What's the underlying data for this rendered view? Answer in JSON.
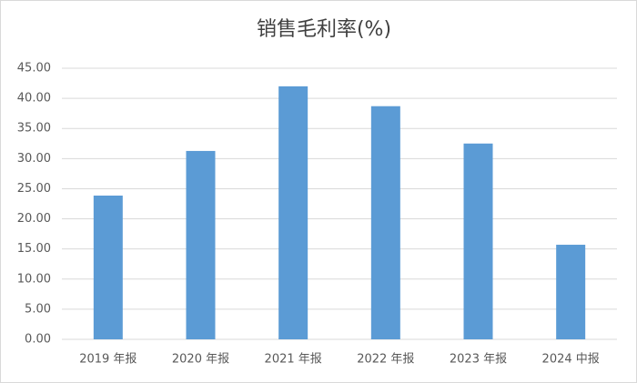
{
  "chart_data": {
    "type": "bar",
    "title": "销售毛利率(%)",
    "categories": [
      "2019 年报",
      "2020 年报",
      "2021 年报",
      "2022 年报",
      "2023 年报",
      "2024 中报"
    ],
    "values": [
      23.86,
      31.27,
      42.0,
      38.7,
      32.5,
      15.7
    ],
    "color": "#5b9bd5",
    "ylim": [
      0,
      45
    ],
    "yticks": [
      {
        "value": 0,
        "label": "0.00"
      },
      {
        "value": 5,
        "label": "5.00"
      },
      {
        "value": 10,
        "label": "10.00"
      },
      {
        "value": 15,
        "label": "15.00"
      },
      {
        "value": 20,
        "label": "20.00"
      },
      {
        "value": 25,
        "label": "25.00"
      },
      {
        "value": 30,
        "label": "30.00"
      },
      {
        "value": 35,
        "label": "35.00"
      },
      {
        "value": 40,
        "label": "40.00"
      },
      {
        "value": 45,
        "label": "45.00"
      }
    ],
    "grid": true
  }
}
